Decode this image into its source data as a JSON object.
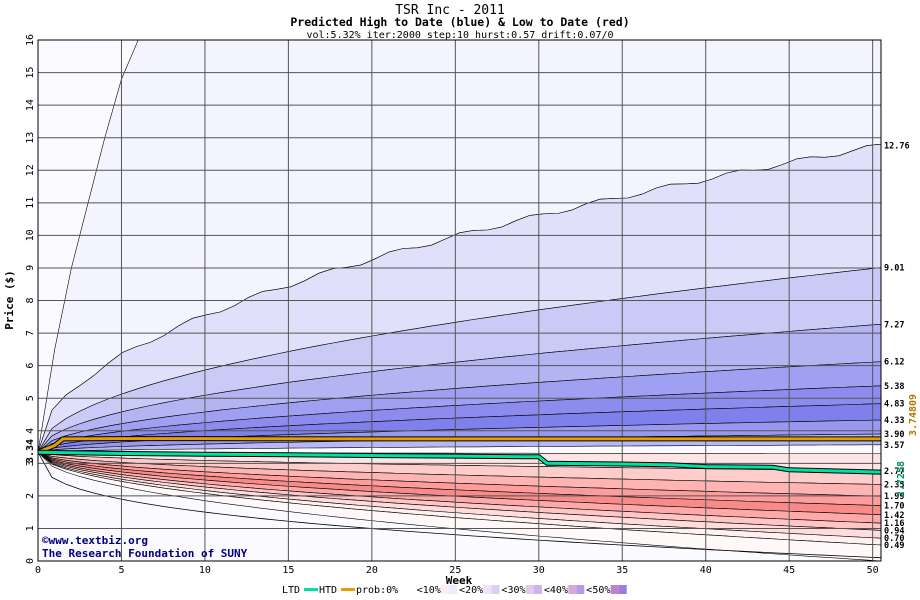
{
  "chart_data": {
    "type": "area",
    "title": "TSR Inc - 2011",
    "subtitle": "Predicted High to Date (blue) &  Low to Date (red)",
    "params": "vol:5.32% iter:2000 step:10 hurst:0.57 drift:0.07/0",
    "xlabel": "Week",
    "ylabel": "Price ($)",
    "xlim": [
      0,
      50.5
    ],
    "ylim": [
      0,
      16
    ],
    "xticks": [
      0,
      5,
      10,
      15,
      20,
      25,
      30,
      35,
      40,
      45,
      50
    ],
    "yticks": [
      0,
      1,
      2,
      3,
      4,
      5,
      6,
      7,
      8,
      9,
      10,
      11,
      12,
      13,
      14,
      15,
      16
    ],
    "grid": true,
    "start_price": "3.34",
    "right_labels": [
      "12.76",
      "9.01",
      "7.27",
      "6.12",
      "5.38",
      "4.83",
      "4.33",
      "3.90",
      "3.57",
      "2.77",
      "2.35",
      "1.99",
      "1.70",
      "1.42",
      "1.16",
      "0.94",
      "0.70",
      "0.49"
    ],
    "side_values": {
      "green": "2.7258",
      "orange": "3.74809"
    },
    "high_bands_end": [
      16,
      12.76,
      9.01,
      7.27,
      6.12,
      5.38,
      4.83,
      4.33,
      3.9
    ],
    "low_bands_end": [
      2.77,
      2.35,
      1.99,
      1.7,
      1.42,
      1.16,
      0.94,
      0.7,
      0.49,
      0
    ],
    "outer_high_path": {
      "x": [
        0,
        1,
        2,
        3,
        4,
        5,
        6
      ],
      "y": [
        3.34,
        6.5,
        9.0,
        11.0,
        13.0,
        14.8,
        16.0
      ]
    },
    "outer_low_end": 0.1,
    "htd_series": {
      "name": "HTD",
      "x": [
        0,
        1,
        1.5,
        5,
        10,
        20,
        30,
        40,
        50.5
      ],
      "y": [
        3.34,
        3.55,
        3.75,
        3.76,
        3.76,
        3.75,
        3.75,
        3.75,
        3.75
      ]
    },
    "ltd_series": {
      "name": "LTD",
      "x": [
        0,
        5,
        10,
        15,
        20,
        25,
        29,
        30,
        30.5,
        35,
        38,
        40,
        44,
        45,
        50.5
      ],
      "y": [
        3.34,
        3.3,
        3.28,
        3.26,
        3.24,
        3.22,
        3.2,
        3.2,
        3.0,
        2.98,
        2.95,
        2.9,
        2.88,
        2.8,
        2.73
      ]
    },
    "legend": {
      "position": "bottom",
      "items": [
        "LTD",
        "HTD",
        "prob:0%",
        "<10%",
        "<20%",
        "<30%",
        "<40%",
        "<50%"
      ],
      "colors": [
        "#00e0a0",
        "#e0a000"
      ]
    },
    "colors": {
      "blue_bands": [
        "#f4f4ff",
        "#e0e0fb",
        "#cacaf7",
        "#b4b4f3",
        "#a0a0f2",
        "#8c8cee",
        "#8080ec",
        "#9898f1",
        "#b8b8f6"
      ],
      "red_bands": [
        "#ffe4e4",
        "#ffcccc",
        "#ffb4b4",
        "#ff9c9c",
        "#f88a8a",
        "#ffa8a8",
        "#ffc4c4",
        "#ffdcdc",
        "#fff0f0",
        "#fff8f8"
      ],
      "htd": "#e0a000",
      "ltd": "#00e0a0"
    }
  },
  "credits": {
    "line1": "www.textbiz.org",
    "line2": "The Research Foundation of SUNY"
  }
}
